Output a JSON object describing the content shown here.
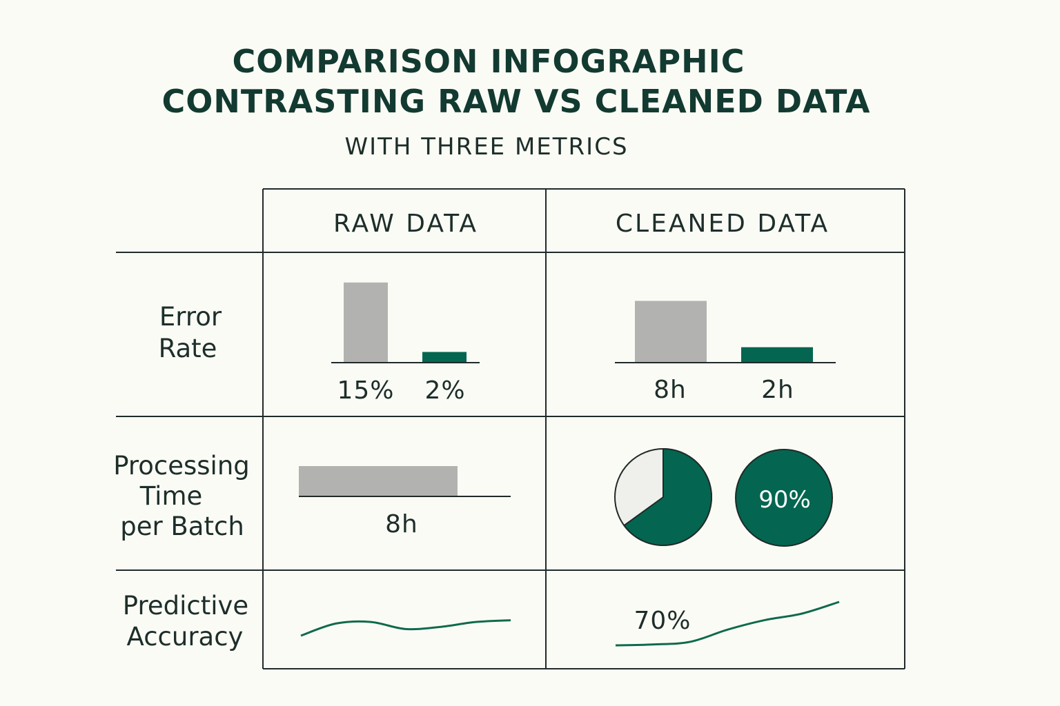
{
  "header": {
    "title_line1": "COMPARISON INFOGRAPHIC",
    "title_line2": "CONTRASTING RAW VS CLEANED DATA",
    "subtitle": "WITH THREE METRICS"
  },
  "columns": {
    "raw": "RAW DATA",
    "cleaned": "CLEANED DATA"
  },
  "rows": {
    "error_rate": [
      "Error",
      "Rate"
    ],
    "processing_time": [
      "Processing",
      "Time",
      "per Batch"
    ],
    "predictive_accuracy": [
      "Predictive",
      "Accuracy"
    ]
  },
  "colors": {
    "raw_gray": "#b2b2b0",
    "clean_green": "#046650",
    "pie_light": "#efefeb",
    "line_green": "#0e6a4c",
    "grid": "#1f2a27"
  },
  "chart_data": [
    {
      "type": "bar",
      "panel": "Error Rate / RAW DATA",
      "categories": [
        "15%",
        "2%"
      ],
      "values": [
        15,
        2
      ],
      "ylim": [
        0,
        16
      ]
    },
    {
      "type": "bar",
      "panel": "Error Rate / CLEANED DATA",
      "categories": [
        "8h",
        "2h"
      ],
      "values": [
        8,
        2
      ],
      "ylim": [
        0,
        10
      ]
    },
    {
      "type": "bar",
      "panel": "Processing Time per Batch / RAW DATA",
      "categories": [
        "8h"
      ],
      "values": [
        8
      ],
      "xlim": [
        0,
        12
      ]
    },
    {
      "type": "pie",
      "panel": "Processing Time per Batch / CLEANED DATA",
      "pies": [
        {
          "label": "",
          "value": 65
        },
        {
          "label": "90%",
          "value": 100
        }
      ]
    },
    {
      "type": "line",
      "panel": "Predictive Accuracy / RAW DATA",
      "x": [
        0,
        1,
        2,
        3,
        4,
        5,
        6
      ],
      "values": [
        0.0,
        0.55,
        0.62,
        0.3,
        0.4,
        0.62,
        0.7
      ],
      "ylim": [
        0,
        1
      ]
    },
    {
      "type": "line",
      "panel": "Predictive Accuracy / CLEANED DATA",
      "label": "70%",
      "x": [
        0,
        1,
        2,
        3,
        4,
        5,
        6
      ],
      "values": [
        0.0,
        0.02,
        0.08,
        0.36,
        0.58,
        0.73,
        1.0
      ],
      "ylim": [
        0,
        1
      ]
    }
  ]
}
